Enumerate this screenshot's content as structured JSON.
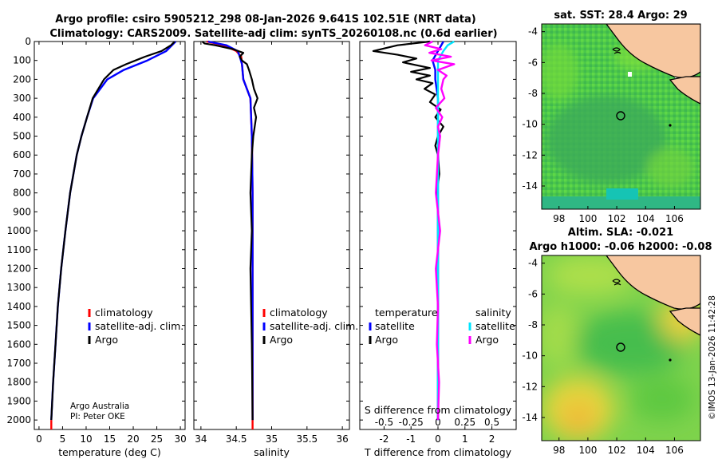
{
  "header": {
    "title_line1": "Argo profile: csiro 5905212_298 08-Jan-2026 9.641S 102.51E (NRT data)",
    "title_line2": "Climatology: CARS2009. Satellite-adj clim: synTS_20260108.nc (0.6d earlier)"
  },
  "colors": {
    "climatology": "#ff0000",
    "satellite_adj": "#0000ff",
    "argo": "#000000",
    "salinity_sat": "#00e5ff",
    "salinity_argo": "#ff00ff",
    "land": "#f7c7a0"
  },
  "depth_axis": {
    "ticks": [
      "0",
      "100",
      "200",
      "300",
      "400",
      "500",
      "600",
      "700",
      "800",
      "900",
      "1000",
      "1100",
      "1200",
      "1300",
      "1400",
      "1500",
      "1600",
      "1700",
      "1800",
      "1900",
      "2000"
    ],
    "range": [
      0,
      2050
    ]
  },
  "chart_data": [
    {
      "type": "line",
      "name": "temperature-profile",
      "xlabel": "temperature (deg C)",
      "xlim": [
        -1,
        31
      ],
      "xticks": [
        "0",
        "5",
        "10",
        "15",
        "20",
        "25",
        "30"
      ],
      "legend": [
        "climatology",
        "satellite-adj. clim.",
        "Argo"
      ],
      "series": [
        {
          "name": "climatology",
          "depth": [
            2000,
            2050
          ],
          "values": [
            2.6,
            2.6
          ]
        },
        {
          "name": "satellite-adj. clim.",
          "depth": [
            0,
            50,
            100,
            150,
            200,
            300,
            400,
            500,
            600,
            800,
            1000,
            1200,
            1400,
            1600,
            1800,
            2000
          ],
          "values": [
            29.0,
            27.0,
            23.0,
            18.0,
            14.5,
            11.5,
            10.2,
            9.0,
            8.0,
            6.6,
            5.6,
            4.7,
            4.0,
            3.5,
            3.0,
            2.6
          ]
        },
        {
          "name": "Argo",
          "depth": [
            0,
            20,
            50,
            80,
            100,
            120,
            150,
            180,
            200,
            300,
            400,
            500,
            600,
            800,
            1000,
            1200,
            1400,
            1600,
            1800,
            2000
          ],
          "values": [
            28.8,
            28.0,
            26.0,
            22.5,
            20.5,
            18.5,
            15.8,
            14.6,
            13.8,
            11.4,
            10.2,
            9.0,
            8.0,
            6.6,
            5.6,
            4.7,
            4.0,
            3.5,
            3.0,
            2.6
          ]
        }
      ]
    },
    {
      "type": "line",
      "name": "salinity-profile",
      "xlabel": "salinity",
      "xlim": [
        33.9,
        36.1
      ],
      "xticks": [
        "34",
        "34.5",
        "35",
        "35.5",
        "36"
      ],
      "legend": [
        "climatology",
        "satellite-adj. clim.",
        "Argo"
      ],
      "series": [
        {
          "name": "climatology",
          "depth": [
            0,
            20,
            50,
            80,
            120,
            200,
            300,
            500,
            800,
            1200,
            1600,
            2000,
            2050
          ],
          "values": [
            34.08,
            34.32,
            34.5,
            34.57,
            34.58,
            34.6,
            34.7,
            34.72,
            34.73,
            34.73,
            34.73,
            34.73,
            34.73
          ]
        },
        {
          "name": "satellite-adj. clim.",
          "depth": [
            0,
            20,
            50,
            80,
            120,
            200,
            300,
            500,
            800,
            1200,
            1600,
            2000
          ],
          "values": [
            34.1,
            34.36,
            34.52,
            34.55,
            34.58,
            34.6,
            34.7,
            34.72,
            34.73,
            34.73,
            34.73,
            34.73
          ]
        },
        {
          "name": "Argo",
          "depth": [
            0,
            10,
            20,
            40,
            60,
            80,
            100,
            120,
            150,
            200,
            250,
            300,
            350,
            400,
            500,
            600,
            800,
            1000,
            1200,
            1600,
            2000
          ],
          "values": [
            34.02,
            34.05,
            34.2,
            34.45,
            34.6,
            34.55,
            34.58,
            34.65,
            34.68,
            34.72,
            34.75,
            34.8,
            34.75,
            34.78,
            34.74,
            34.72,
            34.7,
            34.72,
            34.7,
            34.72,
            34.73
          ]
        }
      ]
    },
    {
      "type": "line",
      "name": "difference-profile",
      "xlabel": "T difference from climatology",
      "xlabel_top": "S difference from climatology",
      "xlim": [
        -2.9,
        2.9
      ],
      "xticks": [
        "-2",
        "-1",
        "0",
        "1",
        "2"
      ],
      "xticks_top": [
        "-0.5",
        "-0.25",
        "0",
        "0.25",
        "0.5"
      ],
      "legend_temperature": {
        "header": "temperature",
        "items": [
          "satellite",
          "Argo"
        ]
      },
      "legend_salinity": {
        "header": "salinity",
        "items": [
          "satellite",
          "Argo"
        ]
      },
      "series": [
        {
          "name": "T satellite",
          "depth": [
            0,
            50,
            100,
            150,
            200,
            300,
            400,
            600,
            1000,
            1400,
            2000
          ],
          "values": [
            0.2,
            0.0,
            -0.2,
            -0.1,
            -0.1,
            0.0,
            0.0,
            0.0,
            0.0,
            0.0,
            0.0
          ]
        },
        {
          "name": "T Argo",
          "depth": [
            0,
            20,
            50,
            70,
            90,
            110,
            140,
            160,
            180,
            200,
            220,
            250,
            280,
            320,
            360,
            400,
            450,
            500,
            550,
            600,
            700,
            800,
            900,
            1000,
            1200,
            1400,
            1600,
            1800,
            2000
          ],
          "values": [
            -0.3,
            -1.5,
            -2.4,
            -1.5,
            -0.8,
            -1.3,
            -0.3,
            -1.0,
            -0.3,
            -0.8,
            -0.2,
            -0.5,
            -0.1,
            -0.3,
            0.1,
            -0.1,
            0.2,
            0.0,
            -0.1,
            0.0,
            0.05,
            -0.05,
            0.0,
            0.0,
            0.0,
            0.0,
            0.0,
            0.0,
            0.0
          ]
        },
        {
          "name": "S satellite",
          "depth": [
            0,
            20,
            50,
            100,
            200,
            400,
            600,
            1000,
            1400,
            2000
          ],
          "values": [
            0.15,
            0.09,
            0.05,
            0.0,
            0.0,
            0.0,
            0.0,
            0.0,
            0.0,
            0.0
          ]
        },
        {
          "name": "S Argo",
          "depth": [
            0,
            20,
            40,
            60,
            80,
            100,
            120,
            150,
            180,
            200,
            250,
            300,
            350,
            400,
            450,
            500,
            600,
            800,
            1000,
            1200,
            1400,
            1600,
            1800,
            2000
          ],
          "values": [
            -0.05,
            -0.12,
            0.03,
            -0.08,
            0.12,
            -0.06,
            0.15,
            0.0,
            0.08,
            0.05,
            0.03,
            0.06,
            -0.02,
            0.04,
            0.0,
            0.02,
            0.0,
            -0.02,
            0.02,
            -0.02,
            0.0,
            -0.01,
            0.01,
            0.0
          ]
        }
      ]
    },
    {
      "type": "heatmap",
      "name": "sst-map",
      "title": "sat. SST: 28.4 Argo: 29",
      "xticks": [
        "98",
        "100",
        "102",
        "104",
        "106"
      ],
      "yticks": [
        "-4",
        "-6",
        "-8",
        "-10",
        "-12",
        "-14"
      ]
    },
    {
      "type": "heatmap",
      "name": "sla-map",
      "title_line1": "Altim. SLA: -0.021",
      "title_line2": "Argo h1000: -0.06 h2000: -0.08",
      "xticks": [
        "98",
        "100",
        "102",
        "104",
        "106"
      ],
      "yticks": [
        "-4",
        "-6",
        "-8",
        "-10",
        "-12",
        "-14"
      ]
    }
  ],
  "annotations": {
    "institution": "Argo Australia",
    "pi": "PI: Peter OKE",
    "stamp": "©IMOS 13-Jan-2026 11:42:28"
  }
}
